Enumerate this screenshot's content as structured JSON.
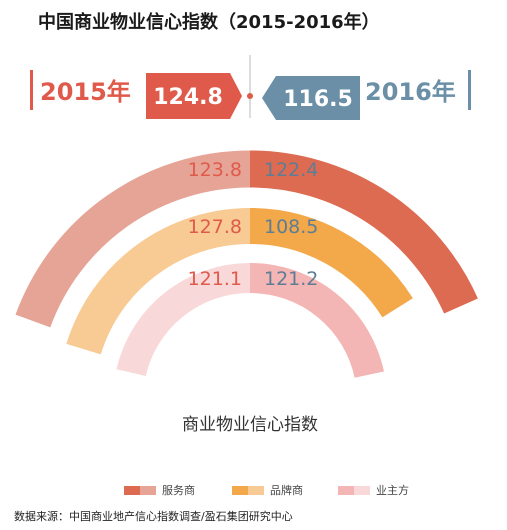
{
  "title": "中国商业物业信心指数（2015-2016年）",
  "header": {
    "left_year": "2015年",
    "left_value": "124.8",
    "right_year": "2016年",
    "right_value": "116.5"
  },
  "colors": {
    "red": "#e05a4b",
    "blue": "#6a8fa6"
  },
  "chart_data": {
    "type": "half-donut",
    "center_label": "商业物业信心指数",
    "categories": [
      "服务商",
      "品牌商",
      "业主方"
    ],
    "series": [
      {
        "name": "2015年",
        "values": [
          123.8,
          127.8,
          121.1
        ]
      },
      {
        "name": "2016年",
        "values": [
          122.4,
          108.5,
          121.2
        ]
      }
    ],
    "ring_colors": {
      "服务商": {
        "2015": "#e6a497",
        "2016": "#dd6b51"
      },
      "品牌商": {
        "2015": "#f7cb93",
        "2016": "#f3a94a"
      },
      "业主方": {
        "2015": "#f8d8d8",
        "2016": "#f4b5b5"
      }
    },
    "legend": [
      {
        "label": "服务商",
        "colors": [
          "#dd6b51",
          "#e6a497"
        ]
      },
      {
        "label": "品牌商",
        "colors": [
          "#f3a94a",
          "#f7cb93"
        ]
      },
      {
        "label": "业主方",
        "colors": [
          "#f4b5b5",
          "#f8d8d8"
        ]
      }
    ]
  },
  "source": "数据来源：中国商业地产信心指数调查/盈石集团研究中心"
}
